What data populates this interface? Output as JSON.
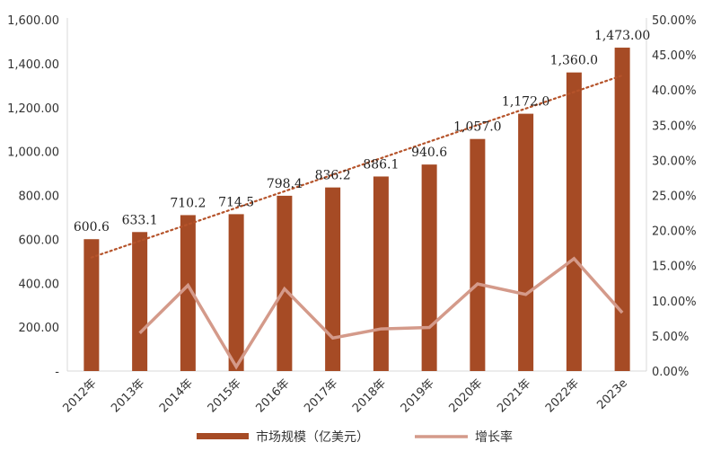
{
  "chart_data": {
    "type": "bar",
    "categories": [
      "2012年",
      "2013年",
      "2014年",
      "2015年",
      "2016年",
      "2017年",
      "2018年",
      "2019年",
      "2020年",
      "2021年",
      "2022年",
      "2023e"
    ],
    "series": [
      {
        "name": "市场规模（亿美元）",
        "type": "bar",
        "axis": "left",
        "color": "#A64B25",
        "values": [
          600.6,
          633.1,
          710.2,
          714.5,
          798.4,
          836.2,
          886.1,
          940.6,
          1057.0,
          1172.0,
          1360.0,
          1473.0
        ],
        "labels": [
          "600.6",
          "633.1",
          "710.2",
          "714.5",
          "798.4",
          "836.2",
          "886.1",
          "940.6",
          "1,057.0",
          "1,172.0",
          "1,360.0",
          "1,473.00"
        ]
      },
      {
        "name": "增长率",
        "type": "line",
        "axis": "right",
        "color": "#D49A8A",
        "values": [
          null,
          5.4,
          12.2,
          0.6,
          11.7,
          4.7,
          6.0,
          6.2,
          12.4,
          10.9,
          16.0,
          8.3
        ]
      }
    ],
    "trendline": {
      "of_series": "市场规模（亿美元）",
      "style": "dotted",
      "color": "#B5532A"
    },
    "left_axis": {
      "ylim": [
        0,
        1600
      ],
      "ticks": [
        "-",
        "200.00",
        "400.00",
        "600.00",
        "800.00",
        "1,000.00",
        "1,200.00",
        "1,400.00",
        "1,600.00"
      ]
    },
    "right_axis": {
      "ylim": [
        0,
        50
      ],
      "ticks": [
        "0.00%",
        "5.00%",
        "10.00%",
        "15.00%",
        "20.00%",
        "25.00%",
        "30.00%",
        "35.00%",
        "40.00%",
        "45.00%",
        "50.00%"
      ]
    },
    "grid": false,
    "legend_position": "bottom"
  }
}
